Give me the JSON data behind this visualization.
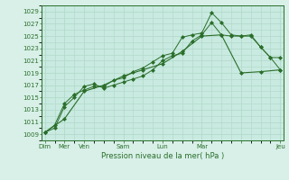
{
  "background_color": "#d8f0e8",
  "plot_bg_color": "#c8eae0",
  "grid_color": "#b0d8c8",
  "line_color": "#2a6e2a",
  "marker_color": "#2a6e2a",
  "xlabel": "Pression niveau de la mer( hPa )",
  "ylim": [
    1008,
    1030
  ],
  "yticks": [
    1009,
    1011,
    1013,
    1015,
    1017,
    1019,
    1021,
    1023,
    1025,
    1027,
    1029
  ],
  "xlim": [
    -0.3,
    24.3
  ],
  "series1_x": [
    0,
    1,
    2,
    3,
    4,
    5,
    6,
    7,
    8,
    9,
    10,
    11,
    12,
    13,
    14,
    15,
    16,
    17,
    18,
    19,
    20,
    21,
    22,
    23,
    24
  ],
  "series1_y": [
    1009.3,
    1010.5,
    1014.0,
    1015.5,
    1016.2,
    1016.8,
    1016.8,
    1017.8,
    1018.2,
    1019.2,
    1019.8,
    1020.8,
    1021.8,
    1022.2,
    1024.8,
    1025.2,
    1025.5,
    1028.8,
    1027.2,
    1025.2,
    1025.0,
    1025.2,
    1023.2,
    1021.5,
    1019.5
  ],
  "series2_x": [
    0,
    1,
    2,
    3,
    4,
    5,
    6,
    7,
    8,
    9,
    10,
    11,
    12,
    13,
    14,
    15,
    16,
    17,
    18,
    19,
    20,
    21,
    22,
    23,
    24
  ],
  "series2_y": [
    1009.3,
    1010.0,
    1013.5,
    1015.0,
    1016.8,
    1017.2,
    1016.5,
    1017.0,
    1017.5,
    1018.0,
    1018.5,
    1019.5,
    1021.0,
    1021.8,
    1022.2,
    1024.2,
    1025.2,
    1027.2,
    1025.2,
    1025.0,
    1025.0,
    1025.0,
    1023.2,
    1021.5,
    1021.5
  ],
  "series3_x": [
    0,
    2,
    4,
    6,
    8,
    10,
    12,
    14,
    16,
    18,
    20,
    22,
    24
  ],
  "series3_y": [
    1009.3,
    1011.5,
    1016.0,
    1017.0,
    1018.5,
    1019.5,
    1020.5,
    1022.5,
    1025.0,
    1025.2,
    1019.0,
    1019.2,
    1019.5
  ],
  "xtick_positions": [
    0,
    2,
    4,
    8,
    12,
    16,
    20,
    24
  ],
  "xtick_labels": [
    "Dim",
    "Mer",
    "Ven",
    "Sam",
    "Lun",
    "Mar",
    "",
    "Jeu"
  ]
}
